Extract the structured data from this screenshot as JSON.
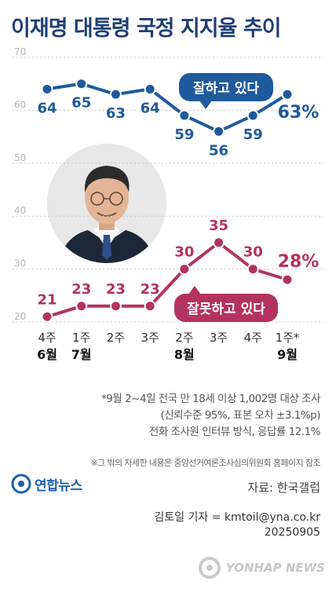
{
  "title": "이재명 대통령 국정 지지율 추이",
  "chart_data": {
    "type": "line",
    "ylim": [
      20,
      70
    ],
    "yticks": [
      20,
      30,
      40,
      50,
      60,
      70
    ],
    "grid": true,
    "x_week": [
      "4주",
      "1주",
      "2주",
      "3주",
      "2주",
      "3주",
      "4주",
      "1주*"
    ],
    "x_month": [
      "6월",
      "7월",
      "",
      "",
      "8월",
      "",
      "",
      "9월"
    ],
    "series": [
      {
        "name": "잘하고 있다",
        "color": "#1f5a9c",
        "values": [
          64,
          65,
          63,
          64,
          59,
          56,
          59,
          63
        ],
        "labels": [
          "64",
          "65",
          "63",
          "64",
          "59",
          "56",
          "59",
          "63%"
        ]
      },
      {
        "name": "잘못하고 있다",
        "color": "#b3325f",
        "values": [
          21,
          23,
          23,
          23,
          30,
          35,
          30,
          28
        ],
        "labels": [
          "21",
          "23",
          "23",
          "23",
          "30",
          "35",
          "30",
          "28%"
        ]
      }
    ]
  },
  "notes": [
    "*9월 2~4일 전국 만 18세 이상 1,002명 대상 조사",
    "(신뢰수준 95%, 표본 오차 ±3.1%p)",
    "전화 조사원 인터뷰 방식, 응답률 12.1%"
  ],
  "footnote": "※그 밖의 자세한 내용은 중앙선거여론조사심의위원회 홈페이지 참조",
  "brand": "연합뉴스",
  "source": "자료: 한국갤럽",
  "reporter": "김토일 기자 = kmtoil@yna.co.kr",
  "date_code": "20250905",
  "watermark": "YONHAP NEWS",
  "colors": {
    "title": "#1f3f73",
    "approve": "#1f5a9c",
    "disapprove": "#b3325f"
  }
}
